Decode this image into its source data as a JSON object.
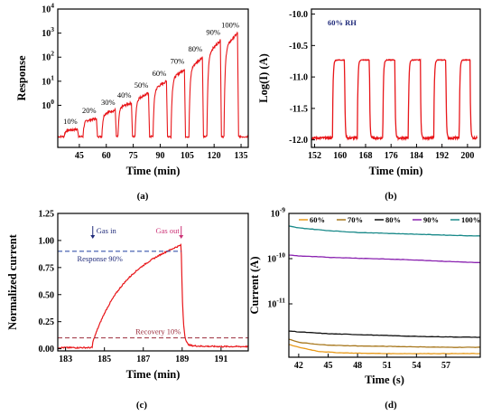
{
  "colors": {
    "red": "#e8161a",
    "navy": "#1f2a7a",
    "blue_dash": "#1f3fa0",
    "magenta": "#cc3377",
    "maroon": "#9b2c3c",
    "s60": "#e89a1a",
    "s70": "#a8781e",
    "s80": "#111111",
    "s90": "#8a22b0",
    "s100": "#1a8a8a"
  },
  "panel_labels": [
    "(a)",
    "(b)",
    "(c)",
    "(d)"
  ],
  "chart_data": [
    {
      "type": "line",
      "panel": "(a)",
      "xlabel": "Time (min)",
      "ylabel": "Response",
      "xlim": [
        33,
        139
      ],
      "x_ticks": [
        45,
        60,
        75,
        90,
        105,
        120,
        135
      ],
      "ylog": true,
      "ylim_log10": [
        -1.75,
        4
      ],
      "y_ticks": [
        {
          "base": "10",
          "exp": "0",
          "log": 0
        },
        {
          "base": "10",
          "exp": "1",
          "log": 1
        },
        {
          "base": "10",
          "exp": "2",
          "log": 2
        },
        {
          "base": "10",
          "exp": "3",
          "log": 3
        },
        {
          "base": "10",
          "exp": "4",
          "log": 4
        }
      ],
      "pulse_width_min": 7.5,
      "baseline_log": -1.3,
      "pulses": [
        {
          "label": "10%",
          "start": 36.5,
          "peak_log": -1.0
        },
        {
          "label": "20%",
          "start": 47,
          "peak_log": -0.55
        },
        {
          "label": "30%",
          "start": 57.5,
          "peak_log": -0.2
        },
        {
          "label": "40%",
          "start": 66.5,
          "peak_log": 0.1
        },
        {
          "label": "50%",
          "start": 76,
          "peak_log": 0.5
        },
        {
          "label": "60%",
          "start": 86,
          "peak_log": 1.0
        },
        {
          "label": "70%",
          "start": 96,
          "peak_log": 1.5
        },
        {
          "label": "80%",
          "start": 106,
          "peak_log": 2.0
        },
        {
          "label": "90%",
          "start": 116,
          "peak_log": 2.7
        },
        {
          "label": "100%",
          "start": 125.5,
          "peak_log": 3.0
        }
      ]
    },
    {
      "type": "line",
      "panel": "(b)",
      "annotation": "60% RH",
      "xlabel": "Time (min)",
      "ylabel": "Log(I) (A)",
      "xlim": [
        151,
        204
      ],
      "x_ticks": [
        152,
        160,
        168,
        176,
        184,
        192,
        200
      ],
      "ylim": [
        -12.12,
        -9.92
      ],
      "y_ticks": [
        "-10.0",
        "-10.5",
        "-11.0",
        "-11.5",
        "-12.0"
      ],
      "y_tick_values": [
        -10.0,
        -10.5,
        -11.0,
        -11.5,
        -12.0
      ],
      "high": -10.73,
      "low": -11.97,
      "on_segments": [
        [
          157.6,
          161.4
        ],
        [
          165.4,
          169.2
        ],
        [
          173.4,
          177.2
        ],
        [
          181.4,
          185.2
        ],
        [
          189.4,
          193.2
        ],
        [
          197.4,
          200.8
        ]
      ]
    },
    {
      "type": "line",
      "panel": "(c)",
      "xlabel": "Time (min)",
      "ylabel": "Normalized current",
      "xlim": [
        182.6,
        192.4
      ],
      "x_ticks": [
        183,
        185,
        187,
        189,
        191
      ],
      "ylim": [
        -0.02,
        1.25
      ],
      "y_ticks": [
        "0.00",
        "0.25",
        "0.50",
        "0.75",
        "1.00",
        "1.25"
      ],
      "y_tick_values": [
        0,
        0.25,
        0.5,
        0.75,
        1.0,
        1.25
      ],
      "gas_in_time": 184.4,
      "gas_out_time": 188.95,
      "response_level": 0.9,
      "recovery_level": 0.1,
      "annotations": {
        "gas_in": "Gas in",
        "gas_out": "Gas out",
        "response": "Response 90%",
        "recovery": "Recovery 10%"
      }
    },
    {
      "type": "line",
      "panel": "(d)",
      "xlabel": "Time (s)",
      "ylabel": "Current (A)",
      "xlim": [
        41,
        60.5
      ],
      "x_ticks": [
        42,
        45,
        48,
        51,
        54,
        57
      ],
      "ylog": true,
      "ylim_log10": [
        -12.18,
        -9
      ],
      "y_ticks": [
        {
          "base": "10",
          "exp": "-9",
          "log": -9
        },
        {
          "base": "10",
          "exp": "-10",
          "log": -10
        },
        {
          "base": "10",
          "exp": "-11",
          "log": -11
        }
      ],
      "legend": [
        "60%",
        "70%",
        "80%",
        "90%",
        "100%"
      ],
      "series": [
        {
          "name": "60%",
          "color_key": "s60",
          "x": [
            41,
            42,
            44,
            46,
            48,
            51,
            54,
            57,
            60.5
          ],
          "log_y": [
            -11.9,
            -11.96,
            -12.05,
            -12.08,
            -12.09,
            -12.1,
            -12.1,
            -12.1,
            -12.1
          ]
        },
        {
          "name": "70%",
          "color_key": "s70",
          "x": [
            41,
            42,
            44,
            46,
            48,
            51,
            54,
            57,
            60.5
          ],
          "log_y": [
            -11.78,
            -11.85,
            -11.9,
            -11.92,
            -11.93,
            -11.94,
            -11.95,
            -11.96,
            -11.96
          ]
        },
        {
          "name": "80%",
          "color_key": "s80",
          "x": [
            41,
            42,
            45,
            48,
            51,
            54,
            57,
            60.5
          ],
          "log_y": [
            -11.6,
            -11.62,
            -11.66,
            -11.68,
            -11.7,
            -11.72,
            -11.73,
            -11.74
          ]
        },
        {
          "name": "90%",
          "color_key": "s90",
          "x": [
            41,
            42,
            45,
            48,
            51,
            54,
            57,
            60.5
          ],
          "log_y": [
            -9.92,
            -9.94,
            -9.97,
            -9.99,
            -10.01,
            -10.03,
            -10.06,
            -10.09
          ]
        },
        {
          "name": "100%",
          "color_key": "s100",
          "x": [
            41,
            42,
            45,
            48,
            51,
            54,
            57,
            60.5
          ],
          "log_y": [
            -9.28,
            -9.32,
            -9.38,
            -9.42,
            -9.44,
            -9.46,
            -9.48,
            -9.5
          ]
        }
      ]
    }
  ]
}
